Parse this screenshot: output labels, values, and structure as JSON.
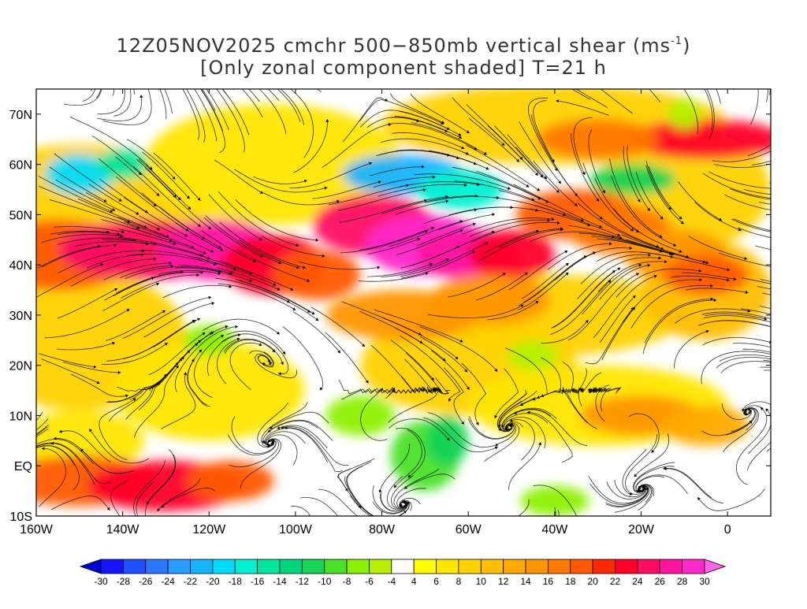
{
  "title": {
    "line1_prefix": "12Z05NOV2025 cmchr 500−850mb vertical shear (ms",
    "line1_sup": "-1",
    "line1_suffix": ")",
    "line2": "[Only zonal component shaded] T=21 h"
  },
  "lat_labels": [
    "70N",
    "60N",
    "50N",
    "40N",
    "30N",
    "20N",
    "10N",
    "EQ",
    "10S"
  ],
  "lat_values": [
    70,
    60,
    50,
    40,
    30,
    20,
    10,
    0,
    -10
  ],
  "lon_labels": [
    "160W",
    "140W",
    "120W",
    "100W",
    "80W",
    "60W",
    "40W",
    "20W",
    "0"
  ],
  "lon_values": [
    -160,
    -140,
    -120,
    -100,
    -80,
    -60,
    -40,
    -20,
    0
  ],
  "map_extent": {
    "lon_min": -160,
    "lon_max": 10,
    "lat_min": -10,
    "lat_max": 75
  },
  "colorbar": {
    "labels": [
      "-30",
      "-28",
      "-26",
      "-24",
      "-22",
      "-20",
      "-18",
      "-16",
      "-14",
      "-12",
      "-10",
      "-8",
      "-6",
      "-4",
      "4",
      "6",
      "8",
      "10",
      "12",
      "14",
      "16",
      "18",
      "20",
      "22",
      "24",
      "26",
      "28",
      "30"
    ],
    "colors": [
      "#1414ff",
      "#1e50ff",
      "#2a78ff",
      "#2a9cff",
      "#16b4ff",
      "#00dcff",
      "#00f0d2",
      "#00e6a0",
      "#00d77c",
      "#16d455",
      "#4be128",
      "#8cf000",
      "#b4f000",
      "#ffffff",
      "#ffff00",
      "#ffe600",
      "#ffd200",
      "#ffbe00",
      "#ffaa00",
      "#ff9600",
      "#ff7800",
      "#ff5a00",
      "#ff2800",
      "#ff0028",
      "#ff0a64",
      "#ff14a0",
      "#ff28c8"
    ],
    "under_color": "#0000d2",
    "over_color": "#ff64e6"
  },
  "field_features": [
    {
      "kind": "jet",
      "desc": "subtropical/polar jet across N Pacific into N America",
      "value": 26
    },
    {
      "kind": "jet",
      "desc": "jet across N America east coast",
      "value": 28
    },
    {
      "kind": "jet",
      "desc": "jet over N Atlantic",
      "value": 22
    },
    {
      "kind": "jet",
      "desc": "tropical easterly/westerly band near equator East Pacific",
      "value": 20
    },
    {
      "kind": "easterly",
      "desc": "negative shear over Hudson Bay / Labrador",
      "value": -22
    },
    {
      "kind": "easterly",
      "desc": "negative shear near Alaska",
      "value": -20
    },
    {
      "kind": "easterly",
      "desc": "negative shear over South America",
      "value": -10
    }
  ]
}
